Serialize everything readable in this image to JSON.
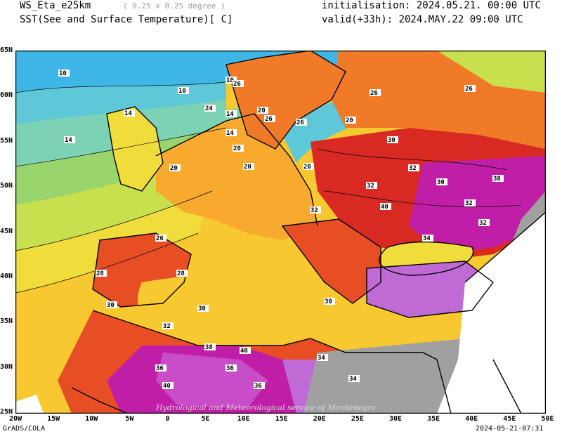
{
  "header": {
    "model": "WS_Eta_e25km",
    "resolution": "( 0.25 x 0.25 degree )",
    "field": "SST(See and Surface Temperature)[ C]",
    "initialisation": "initialisation: 2024.05.21. 00:00 UTC",
    "valid": "valid(+33h): 2024.MAY.22 09:00 UTC"
  },
  "axes": {
    "y_labels": [
      "65N",
      "60N",
      "55N",
      "50N",
      "45N",
      "40N",
      "35N",
      "30N",
      "25N"
    ],
    "x_labels": [
      "20W",
      "15W",
      "10W",
      "5W",
      "0",
      "5E",
      "10E",
      "15E",
      "20E",
      "25E",
      "30E",
      "35E",
      "40E",
      "45E",
      "50E"
    ]
  },
  "footer": {
    "left": "GrADS/COLA",
    "right": "2024-05-21-07:31",
    "watermark": "Hydrological and Meteorological service of Montenegro"
  },
  "colors": {
    "t10": "#3fb6e8",
    "t12": "#5ec8d8",
    "t14": "#7cd2b4",
    "t16": "#9ad46c",
    "t18": "#c8e04e",
    "t20": "#f0dc3a",
    "t22": "#f8c830",
    "t24": "#f8aa2e",
    "t26": "#f07a28",
    "t28": "#e84e24",
    "t30": "#d82a22",
    "t32": "#c01e6a",
    "t34": "#c01ea6",
    "t36": "#c84ec8",
    "t38": "#c06ad6",
    "nodata": "#a0a0a0"
  },
  "map_data": {
    "contour_labels": [
      "10",
      "10",
      "10",
      "14",
      "14",
      "14",
      "14",
      "20",
      "20",
      "20",
      "20",
      "20",
      "20",
      "24",
      "26",
      "26",
      "26",
      "26",
      "26",
      "26",
      "28",
      "28",
      "30",
      "30",
      "30",
      "30",
      "30",
      "32",
      "32",
      "32",
      "32",
      "32",
      "32",
      "34",
      "34",
      "34",
      "36",
      "36",
      "36",
      "38",
      "38",
      "40",
      "40",
      "40"
    ]
  }
}
